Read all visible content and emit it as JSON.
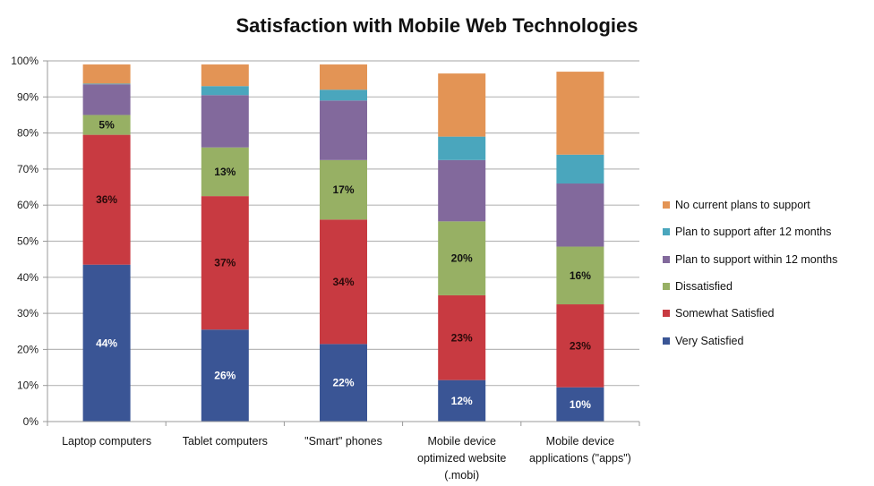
{
  "chart_data": {
    "type": "bar",
    "stacked": true,
    "title": "Satisfaction with Mobile Web Technologies",
    "xlabel": "",
    "ylabel": "",
    "ylim": [
      0,
      100
    ],
    "yticks": [
      "0%",
      "10%",
      "20%",
      "30%",
      "40%",
      "50%",
      "60%",
      "70%",
      "80%",
      "90%",
      "100%"
    ],
    "grid": true,
    "legend_position": "right",
    "categories": [
      [
        "Laptop computers"
      ],
      [
        "Tablet computers"
      ],
      [
        "\"Smart\" phones"
      ],
      [
        "Mobile device",
        "optimized website",
        "(.mobi)"
      ],
      [
        "Mobile device",
        "applications (\"apps\")"
      ]
    ],
    "series": [
      {
        "name": "Very Satisfied",
        "color": "#3a5595",
        "label_color": "#ffffff",
        "values": [
          43.5,
          25.5,
          21.5,
          11.5,
          9.5
        ],
        "labels": [
          "44%",
          "26%",
          "22%",
          "12%",
          "10%"
        ]
      },
      {
        "name": "Somewhat Satisfied",
        "color": "#c83a41",
        "label_color": "#2a0a0a",
        "values": [
          36,
          37,
          34.5,
          23.5,
          23
        ],
        "labels": [
          "36%",
          "37%",
          "34%",
          "23%",
          "23%"
        ]
      },
      {
        "name": "Dissatisfied",
        "color": "#97b064",
        "label_color": "#111111",
        "values": [
          5.5,
          13.5,
          16.5,
          20.5,
          16
        ],
        "labels": [
          "5%",
          "13%",
          "17%",
          "20%",
          "16%"
        ]
      },
      {
        "name": "Plan to support within 12 months",
        "color": "#82699c",
        "label_color": "#111111",
        "values": [
          8.5,
          14.5,
          16.5,
          17,
          17.5
        ],
        "labels": [
          "",
          "",
          "",
          "",
          ""
        ]
      },
      {
        "name": "Plan to support after 12 months",
        "color": "#4aa6bd",
        "label_color": "#111111",
        "values": [
          0.2,
          2.5,
          3,
          6.5,
          8
        ],
        "labels": [
          "",
          "",
          "",
          "",
          ""
        ]
      },
      {
        "name": "No current plans to support",
        "color": "#e39455",
        "label_color": "#111111",
        "values": [
          5.3,
          6,
          7,
          17.5,
          23
        ],
        "labels": [
          "",
          "",
          "",
          "",
          ""
        ]
      }
    ],
    "legend_order": [
      "No current plans to support",
      "Plan to support after 12 months",
      "Plan to support within 12 months",
      "Dissatisfied",
      "Somewhat Satisfied",
      "Very Satisfied"
    ]
  }
}
